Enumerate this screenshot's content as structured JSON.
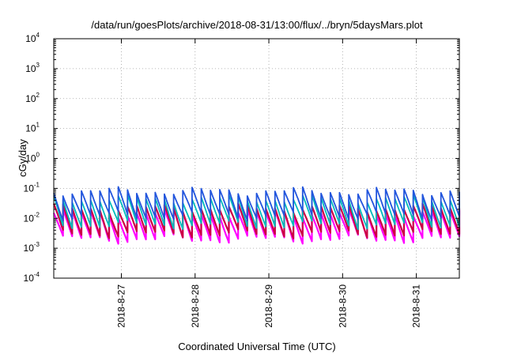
{
  "chart_data": {
    "type": "line",
    "title": "/data/run/goesPlots/archive/2018-08-31/13:00/flux/../bryn/5daysMars.plot",
    "xlabel": "Coordinated Universal Time (UTC)",
    "ylabel": "cGy/day",
    "yscale": "log",
    "ylim": [
      0.0001,
      10000
    ],
    "xlim": [
      "2018-08-26T02:00",
      "2018-08-31T14:00"
    ],
    "x_ticks": [
      "2018-8-27",
      "2018-8-28",
      "2018-8-29",
      "2018-8-30",
      "2018-8-31"
    ],
    "y_ticks": [
      {
        "base": "10",
        "exp": "-4"
      },
      {
        "base": "10",
        "exp": "-3"
      },
      {
        "base": "10",
        "exp": "-2"
      },
      {
        "base": "10",
        "exp": "-1"
      },
      {
        "base": "10",
        "exp": "0"
      },
      {
        "base": "10",
        "exp": "1"
      },
      {
        "base": "10",
        "exp": "2"
      },
      {
        "base": "10",
        "exp": "3"
      },
      {
        "base": "10",
        "exp": "4"
      }
    ],
    "grid": true,
    "sawtooth_period_hours": 3,
    "series": [
      {
        "color": "#ff00ff",
        "low": 0.002,
        "high": 0.015
      },
      {
        "color": "#cc0044",
        "low": 0.003,
        "high": 0.022
      },
      {
        "color": "#00bbbb",
        "low": 0.006,
        "high": 0.045
      },
      {
        "color": "#2255dd",
        "low": 0.012,
        "high": 0.08
      }
    ]
  }
}
